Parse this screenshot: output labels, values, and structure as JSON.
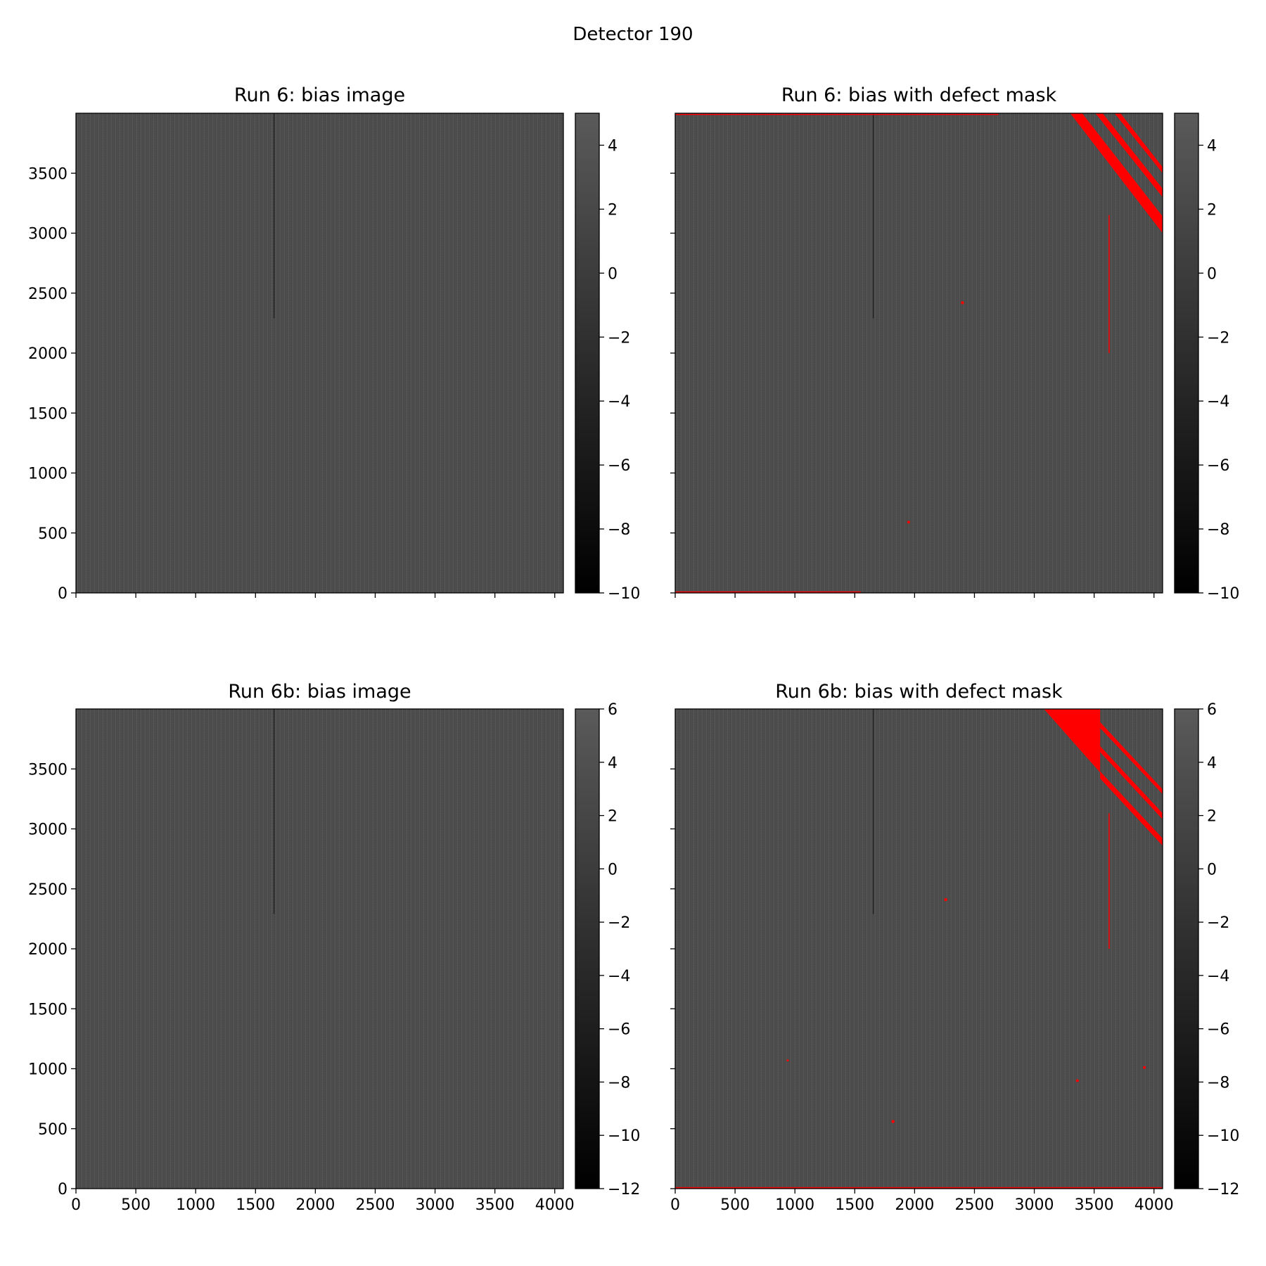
{
  "figure": {
    "suptitle": "Detector 190"
  },
  "chart_data": [
    {
      "type": "heatmap",
      "title": "Run 6: bias image",
      "xlim": [
        0,
        4072
      ],
      "ylim": [
        0,
        4000
      ],
      "xticks": [
        0,
        500,
        1000,
        1500,
        2000,
        2500,
        3000,
        3500,
        4000
      ],
      "yticks": [
        0,
        500,
        1000,
        1500,
        2000,
        2500,
        3000,
        3500
      ],
      "show_xtick_labels": false,
      "show_ytick_labels": true,
      "colormap": "gray",
      "colorbar": {
        "vmin": -10,
        "vmax": 5,
        "ticks": [
          4,
          2,
          0,
          -2,
          -4,
          -6,
          -8,
          -10
        ]
      },
      "features": [
        {
          "kind": "dark-column",
          "x": 1655,
          "y0": 2290,
          "y1": 4000
        }
      ],
      "mask_color": "",
      "mask": {
        "polygons": [],
        "lines": [],
        "spots": []
      }
    },
    {
      "type": "heatmap",
      "title": "Run 6: bias with defect mask",
      "xlim": [
        0,
        4072
      ],
      "ylim": [
        0,
        4000
      ],
      "xticks": [
        0,
        500,
        1000,
        1500,
        2000,
        2500,
        3000,
        3500,
        4000
      ],
      "yticks": [
        0,
        500,
        1000,
        1500,
        2000,
        2500,
        3000,
        3500
      ],
      "show_xtick_labels": false,
      "show_ytick_labels": false,
      "colormap": "gray",
      "colorbar": {
        "vmin": -10,
        "vmax": 5,
        "ticks": [
          4,
          2,
          0,
          -2,
          -4,
          -6,
          -8,
          -10
        ]
      },
      "features": [
        {
          "kind": "dark-column",
          "x": 1655,
          "y0": 2290,
          "y1": 4000
        }
      ],
      "mask_color": "#ff0000",
      "mask": {
        "polygons": [
          [
            [
              3300,
              4000
            ],
            [
              3400,
              4000
            ],
            [
              4072,
              3140
            ],
            [
              4072,
              3000
            ]
          ],
          [
            [
              3510,
              4000
            ],
            [
              3570,
              4000
            ],
            [
              4072,
              3370
            ],
            [
              4072,
              3300
            ]
          ],
          [
            [
              3670,
              4000
            ],
            [
              3720,
              4000
            ],
            [
              4072,
              3550
            ],
            [
              4072,
              3500
            ]
          ]
        ],
        "lines": [
          {
            "x0": 0,
            "y0": 3990,
            "x1": 2700,
            "y1": 3990,
            "width": 1.5
          },
          {
            "x0": 0,
            "y0": 8,
            "x1": 1550,
            "y1": 8,
            "width": 1.5
          },
          {
            "x0": 3625,
            "y0": 3150,
            "x1": 3625,
            "y1": 2000,
            "width": 1.5
          }
        ],
        "spots": [
          {
            "x": 2400,
            "y": 2420,
            "r": 2.2
          },
          {
            "x": 1950,
            "y": 590,
            "r": 2
          }
        ]
      }
    },
    {
      "type": "heatmap",
      "title": "Run 6b: bias image",
      "xlim": [
        0,
        4072
      ],
      "ylim": [
        0,
        4000
      ],
      "xticks": [
        0,
        500,
        1000,
        1500,
        2000,
        2500,
        3000,
        3500,
        4000
      ],
      "yticks": [
        0,
        500,
        1000,
        1500,
        2000,
        2500,
        3000,
        3500
      ],
      "show_xtick_labels": true,
      "show_ytick_labels": true,
      "colormap": "gray",
      "colorbar": {
        "vmin": -12,
        "vmax": 6,
        "ticks": [
          6,
          4,
          2,
          0,
          -2,
          -4,
          -6,
          -8,
          -10,
          -12
        ]
      },
      "features": [
        {
          "kind": "dark-column",
          "x": 1655,
          "y0": 2290,
          "y1": 4000
        }
      ],
      "mask_color": "",
      "mask": {
        "polygons": [],
        "lines": [],
        "spots": []
      }
    },
    {
      "type": "heatmap",
      "title": "Run 6b: bias with defect mask",
      "xlim": [
        0,
        4072
      ],
      "ylim": [
        0,
        4000
      ],
      "xticks": [
        0,
        500,
        1000,
        1500,
        2000,
        2500,
        3000,
        3500,
        4000
      ],
      "yticks": [
        0,
        500,
        1000,
        1500,
        2000,
        2500,
        3000,
        3500
      ],
      "show_xtick_labels": true,
      "show_ytick_labels": false,
      "colormap": "gray",
      "colorbar": {
        "vmin": -12,
        "vmax": 6,
        "ticks": [
          6,
          4,
          2,
          0,
          -2,
          -4,
          -6,
          -8,
          -10,
          -12
        ]
      },
      "features": [
        {
          "kind": "dark-column",
          "x": 1655,
          "y0": 2290,
          "y1": 4000
        }
      ],
      "mask_color": "#ff0000",
      "mask": {
        "polygons": [
          [
            [
              3080,
              4000
            ],
            [
              3550,
              4000
            ],
            [
              3550,
              3470
            ]
          ],
          [
            [
              3550,
              3890
            ],
            [
              4072,
              3330
            ],
            [
              4072,
              3290
            ],
            [
              3550,
              3840
            ]
          ],
          [
            [
              3550,
              3690
            ],
            [
              4072,
              3130
            ],
            [
              4072,
              3080
            ],
            [
              3550,
              3640
            ]
          ],
          [
            [
              3550,
              3480
            ],
            [
              3550,
              3420
            ],
            [
              4072,
              2860
            ],
            [
              4072,
              2920
            ]
          ]
        ],
        "lines": [
          {
            "x0": 0,
            "y0": 8,
            "x1": 4072,
            "y1": 8,
            "width": 1.5
          },
          {
            "x0": 3625,
            "y0": 3130,
            "x1": 3625,
            "y1": 2000,
            "width": 1.5
          }
        ],
        "spots": [
          {
            "x": 2260,
            "y": 2410,
            "r": 2.2
          },
          {
            "x": 1820,
            "y": 560,
            "r": 2.2
          },
          {
            "x": 3360,
            "y": 900,
            "r": 2
          },
          {
            "x": 3920,
            "y": 1010,
            "r": 2
          },
          {
            "x": 940,
            "y": 1070,
            "r": 1.5
          }
        ]
      }
    }
  ]
}
